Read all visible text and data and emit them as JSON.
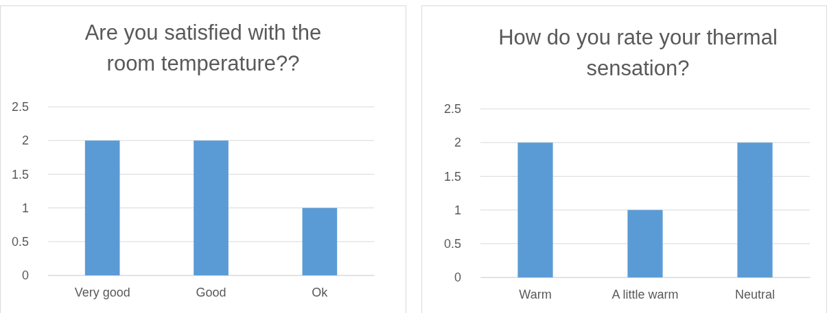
{
  "chart_data": [
    {
      "type": "bar",
      "title": "Are you satisfied with the room temperature??",
      "categories": [
        "Very good",
        "Good",
        "Ok"
      ],
      "values": [
        2,
        2,
        1
      ],
      "color": "#5b9bd5",
      "ylim": [
        0,
        2.5
      ],
      "yticks": [
        0,
        0.5,
        1,
        1.5,
        2,
        2.5
      ],
      "grid": "y"
    },
    {
      "type": "bar",
      "title": "How do you rate your thermal sensation?",
      "categories": [
        "Warm",
        "A little warm",
        "Neutral"
      ],
      "values": [
        2,
        1,
        2
      ],
      "color": "#5b9bd5",
      "ylim": [
        0,
        2.5
      ],
      "yticks": [
        0,
        0.5,
        1,
        1.5,
        2,
        2.5
      ],
      "grid": "y"
    }
  ]
}
